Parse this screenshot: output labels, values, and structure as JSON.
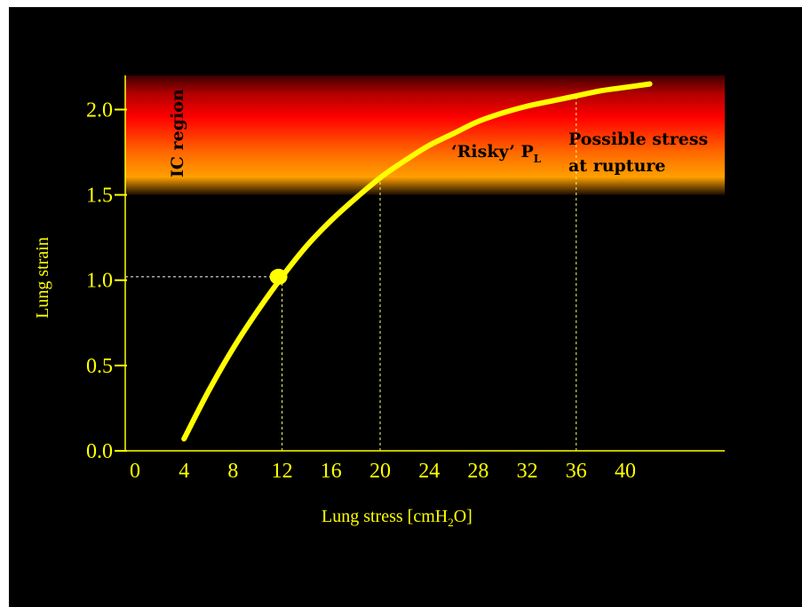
{
  "chart_data": {
    "type": "line",
    "title": "",
    "xlabel": "Lung stress [cmH",
    "xlabel_sub": "2",
    "xlabel_tail": "O]",
    "ylabel": "Lung strain",
    "xlim": [
      0,
      44
    ],
    "ylim": [
      0,
      2.2
    ],
    "x_ticks": [
      "0",
      "4",
      "8",
      "12",
      "16",
      "20",
      "24",
      "28",
      "32",
      "36",
      "40"
    ],
    "y_ticks": [
      "0.0",
      "0.5",
      "1.0",
      "1.5",
      "2.0"
    ],
    "series": [
      {
        "x": [
          4,
          6,
          8,
          10,
          12,
          14,
          16,
          18,
          20,
          22,
          24,
          26,
          28,
          30,
          32,
          34,
          36,
          38,
          40,
          42
        ],
        "y": [
          0.07,
          0.35,
          0.6,
          0.82,
          1.02,
          1.2,
          1.35,
          1.48,
          1.6,
          1.7,
          1.79,
          1.86,
          1.93,
          1.98,
          2.02,
          2.05,
          2.08,
          2.11,
          2.13,
          2.15
        ]
      }
    ],
    "highlight_point": {
      "x": 12,
      "y": 1.02
    },
    "reference_lines_x": [
      12,
      20,
      36
    ],
    "reference_line_y": 1.02,
    "danger_band": {
      "y_from": 1.5,
      "y_to": 2.2
    },
    "annotations": {
      "ic_region": "IC region",
      "risky": "‘Risky’ P",
      "risky_sub": "L",
      "rupture_line1": "Possible stress",
      "rupture_line2": "at rupture"
    },
    "colors": {
      "curve": "#ffff00",
      "axes": "#ffff00",
      "guides": "#ffff66",
      "band_top": "#4a0000",
      "band_mid": "#ff0000",
      "band_low": "#ffa000",
      "background": "#000000"
    }
  }
}
